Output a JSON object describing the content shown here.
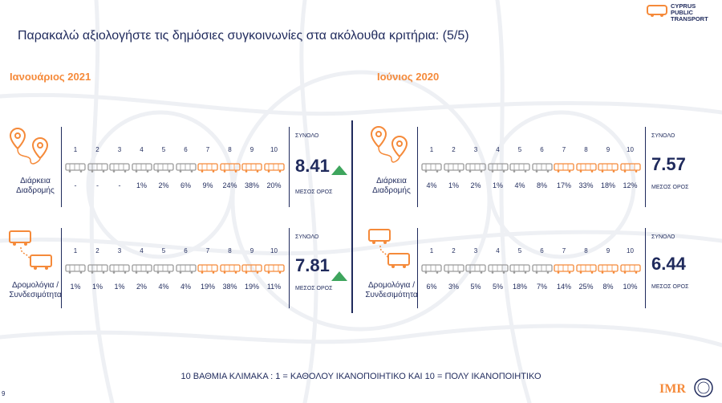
{
  "title": "Παρακαλώ αξιολογήστε τις δημόσιες συγκοινωνίες στα ακόλουθα κριτήρια: (5/5)",
  "logo": {
    "line1": "CYPRUS",
    "line2": "PUBLIC",
    "line3": "TRANSPORT"
  },
  "footnote": "10 ΒΑΘΜΙΑ ΚΛΙΜΑΚΑ : 1 = ΚΑΘΟΛΟΥ ΙΚΑΝΟΠΟΙΗΤΙΚΟ ΚΑΙ 10 = ΠΟΛΥ ΙΚΑΝΟΠΟΙΗΤΙΚΟ",
  "imr": "IMR",
  "page_mark": "9",
  "colors": {
    "orange": "#f58a3a",
    "navy": "#1f2a5c",
    "grey_bus": "#9a9a9a",
    "green": "#3ea55d"
  },
  "labels": {
    "synolo": "ΣΥΝΟΛΟ",
    "meso": "ΜΕΣΟΣ ΟΡΟΣ"
  },
  "chart_data": [
    {
      "type": "table",
      "period": "Ιανουάριος 2021",
      "criterion": [
        "Διάρκεια",
        "Διαδρομής"
      ],
      "icon": "map-pin-route-icon",
      "scale": [
        "1",
        "2",
        "3",
        "4",
        "5",
        "6",
        "7",
        "8",
        "9",
        "10"
      ],
      "values": [
        "-",
        "-",
        "-",
        "1%",
        "2%",
        "6%",
        "9%",
        "24%",
        "38%",
        "20%"
      ],
      "mean": "8.41",
      "trend": "up"
    },
    {
      "type": "table",
      "period": "Ιανουάριος 2021",
      "criterion": [
        "Δρομολόγια /",
        "Συνδεσιμότητα"
      ],
      "icon": "bus-route-icon",
      "scale": [
        "1",
        "2",
        "3",
        "4",
        "5",
        "6",
        "7",
        "8",
        "9",
        "10"
      ],
      "values": [
        "1%",
        "1%",
        "1%",
        "2%",
        "4%",
        "4%",
        "19%",
        "38%",
        "19%",
        "11%"
      ],
      "mean": "7.81",
      "trend": "up"
    },
    {
      "type": "table",
      "period": "Ιούνιος 2020",
      "criterion": [
        "Διάρκεια",
        "Διαδρομής"
      ],
      "icon": "map-pin-route-icon",
      "scale": [
        "1",
        "2",
        "3",
        "4",
        "5",
        "6",
        "7",
        "8",
        "9",
        "10"
      ],
      "values": [
        "4%",
        "1%",
        "2%",
        "1%",
        "4%",
        "8%",
        "17%",
        "33%",
        "18%",
        "12%"
      ],
      "mean": "7.57",
      "trend": ""
    },
    {
      "type": "table",
      "period": "Ιούνιος 2020",
      "criterion": [
        "Δρομολόγια /",
        "Συνδεσιμότητα"
      ],
      "icon": "bus-route-icon",
      "scale": [
        "1",
        "2",
        "3",
        "4",
        "5",
        "6",
        "7",
        "8",
        "9",
        "10"
      ],
      "values": [
        "6%",
        "3%",
        "5%",
        "5%",
        "18%",
        "7%",
        "14%",
        "25%",
        "8%",
        "10%"
      ],
      "mean": "6.44",
      "trend": ""
    }
  ]
}
